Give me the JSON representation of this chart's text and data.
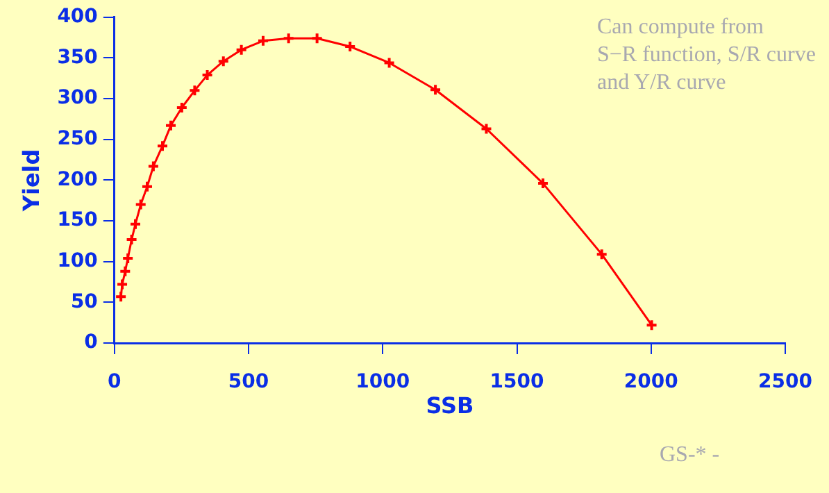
{
  "chart_data": {
    "type": "line",
    "xlabel": "SSB",
    "ylabel": "Yield",
    "x": [
      24,
      29,
      40,
      50,
      64,
      78,
      98,
      122,
      145,
      179,
      210,
      251,
      299,
      346,
      406,
      473,
      554,
      649,
      755,
      878,
      1024,
      1196,
      1386,
      1597,
      1816,
      2002
    ],
    "series": [
      {
        "color": "#ff0000",
        "values": [
          57,
          72,
          88,
          104,
          127,
          146,
          170,
          192,
          217,
          242,
          267,
          289,
          310,
          329,
          346,
          360,
          371,
          374,
          374,
          364,
          344,
          311,
          263,
          196,
          109,
          22
        ]
      }
    ],
    "xlim": [
      0,
      2500
    ],
    "xticks": [
      0,
      500,
      1000,
      1500,
      2000,
      2500
    ],
    "ylim": [
      0,
      400
    ],
    "yticks": [
      0,
      50,
      100,
      150,
      200,
      250,
      300,
      350,
      400
    ],
    "grid": false,
    "legend": false,
    "marker": "cross",
    "line_style": "solid",
    "annotations": [
      "Can compute from\nS−R function, S/R curve\nand Y/R curve",
      "GS-* -"
    ]
  }
}
